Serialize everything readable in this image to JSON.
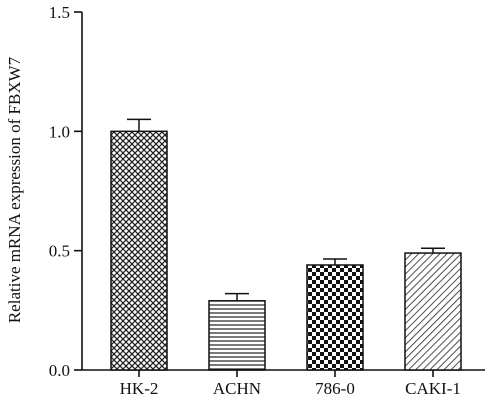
{
  "chart_data": {
    "type": "bar",
    "categories": [
      "HK-2",
      "ACHN",
      "786-0",
      "CAKI-1"
    ],
    "values": [
      1.0,
      0.29,
      0.44,
      0.49
    ],
    "error": [
      0.05,
      0.03,
      0.025,
      0.02
    ],
    "ylabel": "Relative mRNA expression of FBXW7",
    "xlabel": "",
    "ylim": [
      0,
      1.5
    ],
    "yticks": [
      "0.0",
      "0.5",
      "1.0",
      "1.5"
    ],
    "patterns": [
      "crosshatch",
      "horizontal-lines",
      "checkerboard",
      "diagonal-lines"
    ],
    "grid": false
  }
}
